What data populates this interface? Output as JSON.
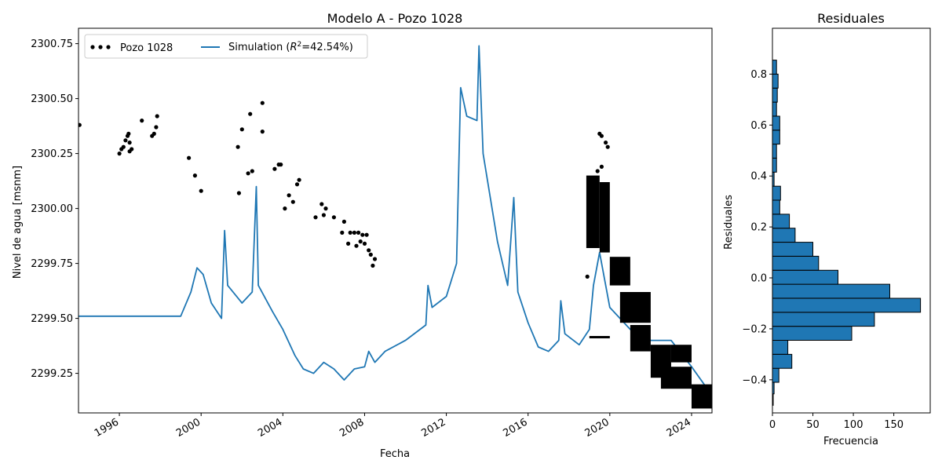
{
  "chart_data": [
    {
      "type": "line",
      "title": "Modelo A - Pozo 1028",
      "xlabel": "Fecha",
      "ylabel": "Nivel de agua [msnm]",
      "xlim": [
        1994.0,
        2025.0
      ],
      "ylim": [
        2299.07,
        2300.82
      ],
      "x_ticks": [
        {
          "value": 1996,
          "label": "1996"
        },
        {
          "value": 2000,
          "label": "2000"
        },
        {
          "value": 2004,
          "label": "2004"
        },
        {
          "value": 2008,
          "label": "2008"
        },
        {
          "value": 2012,
          "label": "2012"
        },
        {
          "value": 2016,
          "label": "2016"
        },
        {
          "value": 2020,
          "label": "2020"
        },
        {
          "value": 2024,
          "label": "2024"
        }
      ],
      "y_ticks": [
        {
          "value": 2299.25,
          "label": "2299.25"
        },
        {
          "value": 2299.5,
          "label": "2299.50"
        },
        {
          "value": 2299.75,
          "label": "2299.75"
        },
        {
          "value": 2300.0,
          "label": "2300.00"
        },
        {
          "value": 2300.25,
          "label": "2300.25"
        },
        {
          "value": 2300.5,
          "label": "2300.50"
        },
        {
          "value": 2300.75,
          "label": "2300.75"
        }
      ],
      "legend": {
        "position": "top-left",
        "observed_label": "Pozo 1028",
        "simulation_prefix": "Simulation (",
        "simulation_r": "R",
        "simulation_sup": "2",
        "simulation_suffix": "=42.54%)"
      },
      "series": [
        {
          "name": "Simulation (R²=42.54%)",
          "style": "line",
          "color": "#1f77b4",
          "points": [
            [
              1994.0,
              2299.51
            ],
            [
              1999.0,
              2299.51
            ],
            [
              1999.5,
              2299.62
            ],
            [
              1999.8,
              2299.73
            ],
            [
              2000.1,
              2299.7
            ],
            [
              2000.5,
              2299.57
            ],
            [
              2001.0,
              2299.5
            ],
            [
              2001.15,
              2299.9
            ],
            [
              2001.3,
              2299.65
            ],
            [
              2002.0,
              2299.57
            ],
            [
              2002.5,
              2299.62
            ],
            [
              2002.7,
              2300.1
            ],
            [
              2002.8,
              2299.65
            ],
            [
              2003.5,
              2299.53
            ],
            [
              2004.0,
              2299.45
            ],
            [
              2004.6,
              2299.33
            ],
            [
              2005.0,
              2299.27
            ],
            [
              2005.5,
              2299.25
            ],
            [
              2006.0,
              2299.3
            ],
            [
              2006.5,
              2299.27
            ],
            [
              2007.0,
              2299.22
            ],
            [
              2007.5,
              2299.27
            ],
            [
              2008.0,
              2299.28
            ],
            [
              2008.2,
              2299.35
            ],
            [
              2008.5,
              2299.3
            ],
            [
              2009.0,
              2299.35
            ],
            [
              2010.0,
              2299.4
            ],
            [
              2011.0,
              2299.47
            ],
            [
              2011.1,
              2299.65
            ],
            [
              2011.3,
              2299.55
            ],
            [
              2012.0,
              2299.6
            ],
            [
              2012.5,
              2299.75
            ],
            [
              2012.7,
              2300.55
            ],
            [
              2013.0,
              2300.42
            ],
            [
              2013.5,
              2300.4
            ],
            [
              2013.6,
              2300.74
            ],
            [
              2013.8,
              2300.25
            ],
            [
              2014.5,
              2299.85
            ],
            [
              2015.0,
              2299.65
            ],
            [
              2015.3,
              2300.05
            ],
            [
              2015.5,
              2299.62
            ],
            [
              2016.0,
              2299.48
            ],
            [
              2016.5,
              2299.37
            ],
            [
              2017.0,
              2299.35
            ],
            [
              2017.5,
              2299.4
            ],
            [
              2017.6,
              2299.58
            ],
            [
              2017.8,
              2299.43
            ],
            [
              2018.5,
              2299.38
            ],
            [
              2019.0,
              2299.45
            ],
            [
              2019.2,
              2299.65
            ],
            [
              2019.5,
              2299.8
            ],
            [
              2020.0,
              2299.55
            ],
            [
              2021.0,
              2299.45
            ],
            [
              2022.0,
              2299.4
            ],
            [
              2023.0,
              2299.4
            ],
            [
              2024.0,
              2299.28
            ],
            [
              2025.0,
              2299.15
            ]
          ]
        },
        {
          "name": "Pozo 1028",
          "style": "scatter",
          "color": "#000000",
          "points": [
            [
              1994.05,
              2300.38
            ],
            [
              1996.0,
              2300.25
            ],
            [
              1996.1,
              2300.27
            ],
            [
              1996.2,
              2300.28
            ],
            [
              1996.3,
              2300.31
            ],
            [
              1996.4,
              2300.33
            ],
            [
              1996.45,
              2300.34
            ],
            [
              1996.5,
              2300.3
            ],
            [
              1996.5,
              2300.26
            ],
            [
              1996.6,
              2300.27
            ],
            [
              1997.1,
              2300.4
            ],
            [
              1997.6,
              2300.33
            ],
            [
              1997.7,
              2300.34
            ],
            [
              1997.8,
              2300.37
            ],
            [
              1997.85,
              2300.42
            ],
            [
              1999.4,
              2300.23
            ],
            [
              1999.7,
              2300.15
            ],
            [
              2000.0,
              2300.08
            ],
            [
              2001.8,
              2300.28
            ],
            [
              2001.85,
              2300.07
            ],
            [
              2002.0,
              2300.36
            ],
            [
              2002.3,
              2300.16
            ],
            [
              2002.4,
              2300.43
            ],
            [
              2002.5,
              2300.17
            ],
            [
              2003.0,
              2300.48
            ],
            [
              2003.0,
              2300.35
            ],
            [
              2003.6,
              2300.18
            ],
            [
              2003.8,
              2300.2
            ],
            [
              2003.9,
              2300.2
            ],
            [
              2004.1,
              2300.0
            ],
            [
              2004.3,
              2300.06
            ],
            [
              2004.5,
              2300.03
            ],
            [
              2004.7,
              2300.11
            ],
            [
              2004.8,
              2300.13
            ],
            [
              2005.6,
              2299.96
            ],
            [
              2005.9,
              2300.02
            ],
            [
              2006.0,
              2299.97
            ],
            [
              2006.1,
              2300.0
            ],
            [
              2006.5,
              2299.96
            ],
            [
              2006.9,
              2299.89
            ],
            [
              2007.0,
              2299.94
            ],
            [
              2007.2,
              2299.84
            ],
            [
              2007.3,
              2299.89
            ],
            [
              2007.5,
              2299.89
            ],
            [
              2007.6,
              2299.83
            ],
            [
              2007.7,
              2299.89
            ],
            [
              2007.8,
              2299.85
            ],
            [
              2007.9,
              2299.88
            ],
            [
              2008.0,
              2299.84
            ],
            [
              2008.1,
              2299.88
            ],
            [
              2008.2,
              2299.81
            ],
            [
              2008.3,
              2299.79
            ],
            [
              2008.4,
              2299.74
            ],
            [
              2008.5,
              2299.77
            ],
            [
              2018.9,
              2299.69
            ],
            [
              2019.5,
              2300.34
            ],
            [
              2019.6,
              2300.33
            ],
            [
              2019.8,
              2300.3
            ],
            [
              2019.9,
              2300.28
            ],
            [
              2019.4,
              2300.17
            ],
            [
              2019.6,
              2300.19
            ]
          ],
          "dense_bands": [
            {
              "x": [
                2018.85,
                2019.5
              ],
              "y": [
                2299.82,
                2300.15
              ]
            },
            {
              "x": [
                2019.5,
                2020.0
              ],
              "y": [
                2299.8,
                2300.12
              ]
            },
            {
              "x": [
                2019.0,
                2020.0
              ],
              "y": [
                2299.41,
                2299.42
              ]
            },
            {
              "x": [
                2020.0,
                2021.0
              ],
              "y": [
                2299.65,
                2299.78
              ]
            },
            {
              "x": [
                2020.5,
                2022.0
              ],
              "y": [
                2299.48,
                2299.62
              ]
            },
            {
              "x": [
                2021.0,
                2022.0
              ],
              "y": [
                2299.35,
                2299.47
              ]
            },
            {
              "x": [
                2022.0,
                2023.0
              ],
              "y": [
                2299.23,
                2299.38
              ]
            },
            {
              "x": [
                2022.5,
                2024.0
              ],
              "y": [
                2299.18,
                2299.28
              ]
            },
            {
              "x": [
                2023.0,
                2024.0
              ],
              "y": [
                2299.3,
                2299.38
              ]
            },
            {
              "x": [
                2024.0,
                2025.0
              ],
              "y": [
                2299.09,
                2299.2
              ]
            }
          ]
        }
      ]
    },
    {
      "type": "bar",
      "orientation": "horizontal",
      "title": "Residuales",
      "xlabel": "Frecuencia",
      "ylabel": "Residuales",
      "xlim": [
        0,
        195
      ],
      "ylim": [
        -0.53,
        0.98
      ],
      "x_ticks": [
        {
          "value": 0,
          "label": "0"
        },
        {
          "value": 50,
          "label": "50"
        },
        {
          "value": 100,
          "label": "100"
        },
        {
          "value": 150,
          "label": "150"
        }
      ],
      "y_ticks": [
        {
          "value": -0.4,
          "label": "−0.4"
        },
        {
          "value": -0.2,
          "label": "−0.2"
        },
        {
          "value": 0.0,
          "label": "0.0"
        },
        {
          "value": 0.2,
          "label": "0.2"
        },
        {
          "value": 0.4,
          "label": "0.4"
        },
        {
          "value": 0.6,
          "label": "0.6"
        },
        {
          "value": 0.8,
          "label": "0.8"
        }
      ],
      "color": "#1f77b4",
      "bins": [
        {
          "lo": -0.5,
          "hi": -0.455,
          "count": 1
        },
        {
          "lo": -0.455,
          "hi": -0.41,
          "count": 2
        },
        {
          "lo": -0.41,
          "hi": -0.355,
          "count": 8
        },
        {
          "lo": -0.355,
          "hi": -0.3,
          "count": 24
        },
        {
          "lo": -0.3,
          "hi": -0.245,
          "count": 19
        },
        {
          "lo": -0.245,
          "hi": -0.19,
          "count": 98
        },
        {
          "lo": -0.19,
          "hi": -0.135,
          "count": 126
        },
        {
          "lo": -0.135,
          "hi": -0.08,
          "count": 183
        },
        {
          "lo": -0.08,
          "hi": -0.025,
          "count": 145
        },
        {
          "lo": -0.025,
          "hi": 0.03,
          "count": 81
        },
        {
          "lo": 0.03,
          "hi": 0.085,
          "count": 57
        },
        {
          "lo": 0.085,
          "hi": 0.14,
          "count": 50
        },
        {
          "lo": 0.14,
          "hi": 0.195,
          "count": 28
        },
        {
          "lo": 0.195,
          "hi": 0.25,
          "count": 21
        },
        {
          "lo": 0.25,
          "hi": 0.305,
          "count": 9
        },
        {
          "lo": 0.305,
          "hi": 0.36,
          "count": 10
        },
        {
          "lo": 0.36,
          "hi": 0.415,
          "count": 2
        },
        {
          "lo": 0.415,
          "hi": 0.47,
          "count": 5
        },
        {
          "lo": 0.47,
          "hi": 0.525,
          "count": 5
        },
        {
          "lo": 0.525,
          "hi": 0.58,
          "count": 9
        },
        {
          "lo": 0.58,
          "hi": 0.635,
          "count": 9
        },
        {
          "lo": 0.635,
          "hi": 0.69,
          "count": 5
        },
        {
          "lo": 0.69,
          "hi": 0.745,
          "count": 6
        },
        {
          "lo": 0.745,
          "hi": 0.8,
          "count": 7
        },
        {
          "lo": 0.8,
          "hi": 0.855,
          "count": 5
        }
      ]
    }
  ]
}
